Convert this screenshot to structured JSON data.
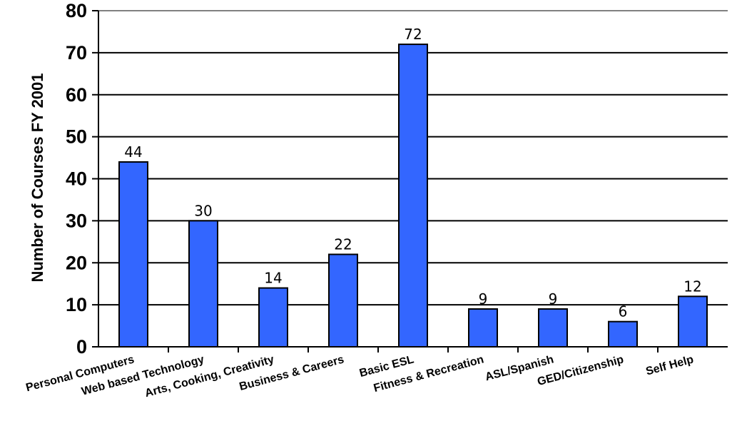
{
  "chart_data": {
    "type": "bar",
    "categories": [
      "Personal Computers",
      "Web based Technology",
      "Arts, Cooking, Creativity",
      "Business & Careers",
      "Basic ESL",
      "Fitness & Recreation",
      "ASL/Spanish",
      "GED/Citizenship",
      "Self Help"
    ],
    "values": [
      44,
      30,
      14,
      22,
      72,
      9,
      9,
      6,
      12
    ],
    "value_labels": [
      "44",
      "30",
      "14",
      "22",
      "72",
      "9",
      "9",
      "6",
      "12"
    ],
    "ylabel": "Number of Courses FY 2001",
    "ylim": [
      0,
      80
    ],
    "yticks": [
      "0",
      "10",
      "20",
      "30",
      "40",
      "50",
      "60",
      "70",
      "80"
    ],
    "grid": true,
    "bar_color": "#3366ff"
  }
}
